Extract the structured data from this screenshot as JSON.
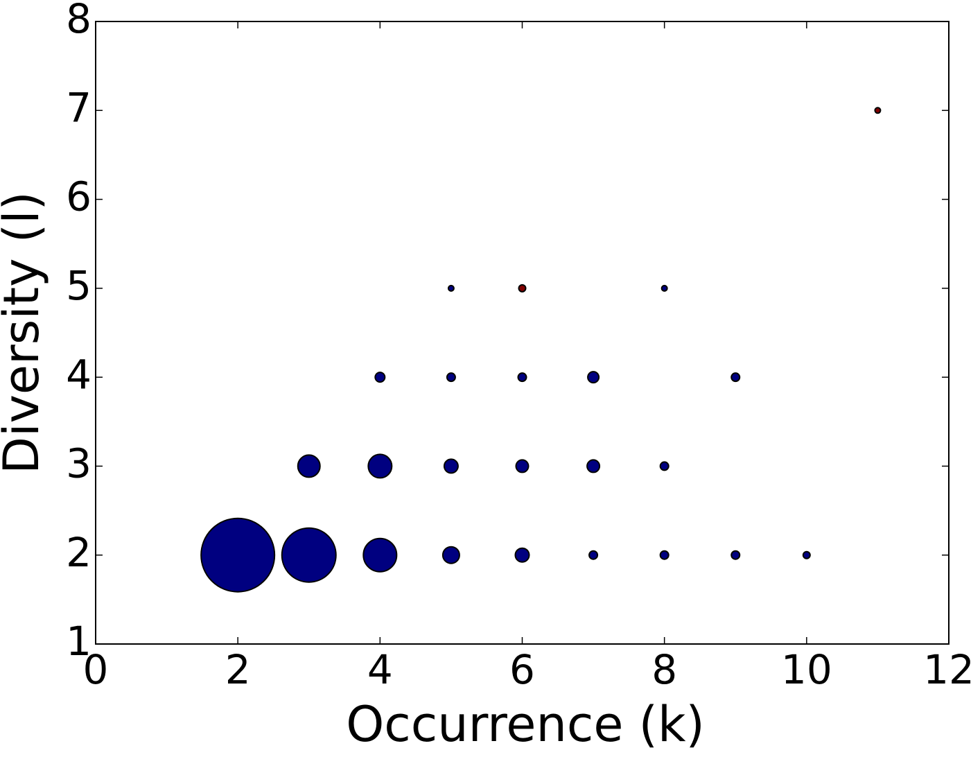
{
  "chart_data": {
    "type": "scatter",
    "xlabel": "Occurrence (k)",
    "ylabel": "Diversity (l)",
    "x": [
      2,
      3,
      4,
      5,
      6,
      7,
      8,
      9,
      10,
      3,
      4,
      5,
      6,
      7,
      8,
      4,
      5,
      6,
      7,
      9,
      5,
      6,
      8,
      11
    ],
    "y": [
      2,
      2,
      2,
      2,
      2,
      2,
      2,
      2,
      2,
      3,
      3,
      3,
      3,
      3,
      3,
      4,
      4,
      4,
      4,
      4,
      5,
      5,
      5,
      7
    ],
    "sizes": [
      2809,
      1521,
      576,
      144,
      100,
      36,
      36,
      36,
      25,
      256,
      289,
      100,
      81,
      81,
      36,
      49,
      36,
      36,
      64,
      36,
      16,
      25,
      16,
      16
    ],
    "colors": [
      "#000080",
      "#000080",
      "#000080",
      "#000080",
      "#000080",
      "#000080",
      "#000080",
      "#000080",
      "#000080",
      "#000080",
      "#000080",
      "#000080",
      "#000080",
      "#000080",
      "#000080",
      "#000080",
      "#000080",
      "#000080",
      "#000080",
      "#000080",
      "#000080",
      "#800000",
      "#000080",
      "#800000"
    ],
    "xlim": [
      0,
      12
    ],
    "xticks": [
      0,
      2,
      4,
      6,
      8,
      10,
      12
    ],
    "ylim": [
      1,
      8
    ],
    "yticks": [
      1,
      2,
      3,
      4,
      5,
      6,
      7,
      8
    ]
  }
}
